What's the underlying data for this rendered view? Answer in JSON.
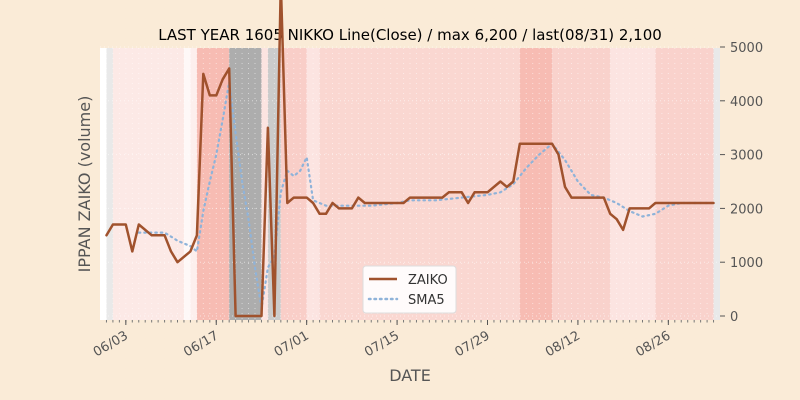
{
  "chart_data": {
    "type": "line",
    "title": "LAST YEAR 1605 NIKKO Line(Close) / max 6,200 / last(08/31) 2,100",
    "xlabel": "DATE",
    "ylabel": "IPPAN ZAIKO (volume)",
    "ylim": [
      0,
      5000
    ],
    "y_ticks": [
      0,
      1000,
      2000,
      3000,
      4000,
      5000
    ],
    "y_axis_side": "right",
    "x_tick_labels": [
      "06/03",
      "06/17",
      "07/01",
      "07/15",
      "07/29",
      "08/12",
      "08/26"
    ],
    "x_tick_days": [
      2,
      16,
      30,
      44,
      58,
      72,
      86
    ],
    "xlim_days": [
      -2,
      94
    ],
    "day_zero": "06/01",
    "legend_position": "lower-center",
    "grid": true,
    "colors": {
      "background": "#faebd7",
      "zaiko": "#a0522d",
      "sma5": "#8fb3d9",
      "band_gray": "#a9a9a9",
      "band_red": "#f4a69a"
    },
    "series": [
      {
        "name": "ZAIKO",
        "style": "solid",
        "points": [
          [
            -1,
            1500
          ],
          [
            0,
            1700
          ],
          [
            2,
            1700
          ],
          [
            3,
            1200
          ],
          [
            4,
            1700
          ],
          [
            6,
            1500
          ],
          [
            8,
            1500
          ],
          [
            9,
            1200
          ],
          [
            10,
            1000
          ],
          [
            12,
            1200
          ],
          [
            13,
            1500
          ],
          [
            14,
            4500
          ],
          [
            15,
            4100
          ],
          [
            16,
            4100
          ],
          [
            17,
            4400
          ],
          [
            18,
            4600
          ],
          [
            19,
            0
          ],
          [
            21,
            0
          ],
          [
            23,
            0
          ],
          [
            24,
            3500
          ],
          [
            25,
            0
          ],
          [
            26,
            6200
          ],
          [
            27,
            2100
          ],
          [
            28,
            2200
          ],
          [
            30,
            2200
          ],
          [
            31,
            2100
          ],
          [
            32,
            1900
          ],
          [
            33,
            1900
          ],
          [
            34,
            2100
          ],
          [
            35,
            2000
          ],
          [
            37,
            2000
          ],
          [
            38,
            2200
          ],
          [
            39,
            2100
          ],
          [
            42,
            2100
          ],
          [
            45,
            2100
          ],
          [
            46,
            2200
          ],
          [
            48,
            2200
          ],
          [
            51,
            2200
          ],
          [
            52,
            2300
          ],
          [
            54,
            2300
          ],
          [
            55,
            2100
          ],
          [
            56,
            2300
          ],
          [
            58,
            2300
          ],
          [
            60,
            2500
          ],
          [
            61,
            2400
          ],
          [
            62,
            2500
          ],
          [
            63,
            3200
          ],
          [
            65,
            3200
          ],
          [
            68,
            3200
          ],
          [
            69,
            3000
          ],
          [
            70,
            2400
          ],
          [
            71,
            2200
          ],
          [
            73,
            2200
          ],
          [
            76,
            2200
          ],
          [
            77,
            1900
          ],
          [
            78,
            1800
          ],
          [
            79,
            1600
          ],
          [
            80,
            2000
          ],
          [
            82,
            2000
          ],
          [
            83,
            2000
          ],
          [
            84,
            2100
          ],
          [
            86,
            2100
          ],
          [
            90,
            2100
          ],
          [
            93,
            2100
          ]
        ]
      },
      {
        "name": "SMA5",
        "style": "dotted",
        "points": [
          [
            4,
            1550
          ],
          [
            6,
            1550
          ],
          [
            8,
            1550
          ],
          [
            10,
            1400
          ],
          [
            12,
            1300
          ],
          [
            13,
            1200
          ],
          [
            14,
            1950
          ],
          [
            15,
            2500
          ],
          [
            16,
            3000
          ],
          [
            17,
            3650
          ],
          [
            18,
            4350
          ],
          [
            19,
            3400
          ],
          [
            20,
            2500
          ],
          [
            21,
            1800
          ],
          [
            22,
            900
          ],
          [
            23,
            150
          ],
          [
            24,
            900
          ],
          [
            25,
            1100
          ],
          [
            26,
            2300
          ],
          [
            27,
            2700
          ],
          [
            28,
            2600
          ],
          [
            29,
            2700
          ],
          [
            30,
            2950
          ],
          [
            31,
            2150
          ],
          [
            33,
            2050
          ],
          [
            35,
            2050
          ],
          [
            38,
            2050
          ],
          [
            40,
            2050
          ],
          [
            44,
            2100
          ],
          [
            46,
            2150
          ],
          [
            50,
            2150
          ],
          [
            54,
            2200
          ],
          [
            58,
            2250
          ],
          [
            60,
            2300
          ],
          [
            62,
            2450
          ],
          [
            64,
            2750
          ],
          [
            66,
            3000
          ],
          [
            68,
            3200
          ],
          [
            70,
            2900
          ],
          [
            72,
            2500
          ],
          [
            74,
            2250
          ],
          [
            76,
            2200
          ],
          [
            78,
            2100
          ],
          [
            80,
            1950
          ],
          [
            82,
            1850
          ],
          [
            84,
            1900
          ],
          [
            86,
            2050
          ],
          [
            88,
            2100
          ],
          [
            93,
            2100
          ]
        ]
      }
    ],
    "bands": [
      {
        "from": -1,
        "to": 0,
        "color": "band_gray",
        "opacity": 0.25
      },
      {
        "from": 0,
        "to": 11,
        "color": "band_red",
        "opacity": 0.25
      },
      {
        "from": 11,
        "to": 12,
        "color": "band_red",
        "opacity": 0.08
      },
      {
        "from": 12,
        "to": 13,
        "color": "band_red",
        "opacity": 0.18
      },
      {
        "from": 13,
        "to": 18,
        "color": "band_red",
        "opacity": 0.75
      },
      {
        "from": 18,
        "to": 23,
        "color": "band_gray",
        "opacity": 0.95
      },
      {
        "from": 23,
        "to": 24,
        "color": "band_red",
        "opacity": 0.3
      },
      {
        "from": 24,
        "to": 26,
        "color": "band_gray",
        "opacity": 0.6
      },
      {
        "from": 26,
        "to": 30,
        "color": "band_red",
        "opacity": 0.55
      },
      {
        "from": 30,
        "to": 32,
        "color": "band_red",
        "opacity": 0.3
      },
      {
        "from": 32,
        "to": 34,
        "color": "band_red",
        "opacity": 0.45
      },
      {
        "from": 34,
        "to": 63,
        "color": "band_red",
        "opacity": 0.45
      },
      {
        "from": 63,
        "to": 68,
        "color": "band_red",
        "opacity": 0.75
      },
      {
        "from": 68,
        "to": 77,
        "color": "band_red",
        "opacity": 0.5
      },
      {
        "from": 77,
        "to": 84,
        "color": "band_red",
        "opacity": 0.3
      },
      {
        "from": 84,
        "to": 93,
        "color": "band_red",
        "opacity": 0.5
      },
      {
        "from": 93,
        "to": 94,
        "color": "band_gray",
        "opacity": 0.25
      }
    ]
  }
}
